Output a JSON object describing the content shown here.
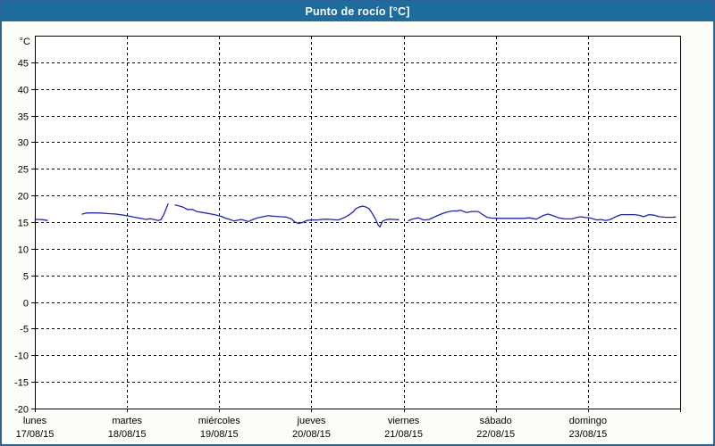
{
  "window": {
    "title": "Punto de rocío [°C]"
  },
  "colors": {
    "title_bar": "#1e6c9e",
    "title_text": "#ffffff",
    "outer_border": "#2c6295",
    "background": "#fcfdf9",
    "plot_background": "#ffffff",
    "plot_border": "#000000",
    "grid": "#000000",
    "axis_text": "#000000",
    "line": "#2121c8"
  },
  "chart_data": {
    "type": "line",
    "title": "Punto de rocío [°C]",
    "ylabel": "°C",
    "xlabel": "",
    "ylim": [
      -20,
      50
    ],
    "yticks": [
      -20,
      -15,
      -10,
      -5,
      0,
      5,
      10,
      15,
      20,
      25,
      30,
      35,
      40,
      45
    ],
    "xlim": [
      0,
      7
    ],
    "grid": "dashed",
    "legend_position": "none",
    "x_categories": [
      {
        "name": "lunes",
        "date": "17/08/15"
      },
      {
        "name": "martes",
        "date": "18/08/15"
      },
      {
        "name": "miércoles",
        "date": "19/08/15"
      },
      {
        "name": "jueves",
        "date": "20/08/15"
      },
      {
        "name": "viernes",
        "date": "21/08/15"
      },
      {
        "name": "sábado",
        "date": "22/08/15"
      },
      {
        "name": "domingo",
        "date": "23/08/15"
      }
    ],
    "series": [
      {
        "name": "Punto de rocío",
        "color": "#2121c8",
        "unit": "°C",
        "segments": [
          [
            [
              0.0,
              15.5
            ],
            [
              0.048,
              15.5
            ],
            [
              0.087,
              15.45
            ],
            [
              0.136,
              15.3
            ]
          ],
          [
            [
              0.514,
              16.5
            ],
            [
              0.562,
              16.7
            ],
            [
              0.63,
              16.75
            ],
            [
              0.708,
              16.7
            ],
            [
              0.785,
              16.6
            ],
            [
              0.882,
              16.5
            ],
            [
              0.96,
              16.3
            ],
            [
              1.028,
              16.1
            ],
            [
              1.096,
              15.85
            ],
            [
              1.154,
              15.7
            ],
            [
              1.202,
              15.5
            ],
            [
              1.251,
              15.65
            ],
            [
              1.29,
              15.5
            ],
            [
              1.338,
              15.3
            ],
            [
              1.367,
              15.45
            ],
            [
              1.396,
              16.3
            ],
            [
              1.445,
              18.4
            ]
          ],
          [
            [
              1.522,
              18.2
            ],
            [
              1.561,
              18.05
            ],
            [
              1.61,
              17.8
            ],
            [
              1.658,
              17.35
            ],
            [
              1.707,
              17.4
            ],
            [
              1.755,
              17.0
            ],
            [
              1.852,
              16.7
            ],
            [
              1.949,
              16.4
            ],
            [
              2.017,
              16.1
            ],
            [
              2.065,
              15.75
            ],
            [
              2.123,
              15.45
            ],
            [
              2.162,
              15.2
            ],
            [
              2.201,
              15.35
            ],
            [
              2.24,
              15.5
            ],
            [
              2.279,
              15.3
            ],
            [
              2.318,
              15.1
            ],
            [
              2.366,
              15.5
            ],
            [
              2.415,
              15.8
            ],
            [
              2.473,
              16.0
            ],
            [
              2.531,
              16.2
            ],
            [
              2.589,
              16.1
            ],
            [
              2.667,
              16.0
            ],
            [
              2.725,
              15.95
            ],
            [
              2.783,
              15.6
            ],
            [
              2.822,
              15.0
            ],
            [
              2.86,
              14.75
            ],
            [
              2.899,
              14.9
            ],
            [
              2.948,
              15.3
            ],
            [
              2.996,
              15.4
            ],
            [
              3.064,
              15.4
            ],
            [
              3.113,
              15.5
            ],
            [
              3.161,
              15.55
            ],
            [
              3.209,
              15.5
            ],
            [
              3.287,
              15.4
            ],
            [
              3.306,
              15.5
            ],
            [
              3.365,
              15.9
            ],
            [
              3.413,
              16.4
            ],
            [
              3.452,
              16.9
            ],
            [
              3.481,
              17.5
            ],
            [
              3.52,
              17.85
            ],
            [
              3.558,
              18.0
            ],
            [
              3.597,
              17.8
            ],
            [
              3.626,
              17.5
            ],
            [
              3.665,
              16.5
            ],
            [
              3.694,
              15.6
            ],
            [
              3.723,
              14.5
            ],
            [
              3.743,
              14.1
            ],
            [
              3.772,
              15.2
            ],
            [
              3.81,
              15.45
            ],
            [
              3.849,
              15.55
            ],
            [
              3.898,
              15.5
            ],
            [
              3.946,
              15.45
            ]
          ],
          [
            [
              4.053,
              15.25
            ],
            [
              4.101,
              15.6
            ],
            [
              4.16,
              15.8
            ],
            [
              4.218,
              15.4
            ],
            [
              4.276,
              15.5
            ],
            [
              4.353,
              16.1
            ],
            [
              4.421,
              16.6
            ],
            [
              4.47,
              16.9
            ],
            [
              4.528,
              17.1
            ],
            [
              4.586,
              17.1
            ],
            [
              4.615,
              17.25
            ],
            [
              4.683,
              16.8
            ],
            [
              4.741,
              17.0
            ],
            [
              4.809,
              17.0
            ],
            [
              4.858,
              16.4
            ],
            [
              4.906,
              15.9
            ],
            [
              4.955,
              15.75
            ],
            [
              5.052,
              15.7
            ],
            [
              5.149,
              15.7
            ],
            [
              5.246,
              15.7
            ],
            [
              5.304,
              15.7
            ],
            [
              5.362,
              15.8
            ],
            [
              5.44,
              15.55
            ],
            [
              5.517,
              16.25
            ],
            [
              5.566,
              16.5
            ],
            [
              5.614,
              16.25
            ],
            [
              5.682,
              15.8
            ],
            [
              5.75,
              15.6
            ],
            [
              5.827,
              15.6
            ],
            [
              5.886,
              15.9
            ],
            [
              5.924,
              16.0
            ],
            [
              5.973,
              15.85
            ],
            [
              6.021,
              15.8
            ],
            [
              6.07,
              15.55
            ],
            [
              6.099,
              15.4
            ],
            [
              6.138,
              15.5
            ],
            [
              6.196,
              15.3
            ],
            [
              6.244,
              15.5
            ],
            [
              6.312,
              16.1
            ],
            [
              6.361,
              16.4
            ],
            [
              6.438,
              16.4
            ],
            [
              6.506,
              16.4
            ],
            [
              6.564,
              16.25
            ],
            [
              6.603,
              16.0
            ],
            [
              6.661,
              16.4
            ],
            [
              6.719,
              16.3
            ],
            [
              6.777,
              16.0
            ],
            [
              6.845,
              15.9
            ],
            [
              6.913,
              15.9
            ],
            [
              6.95,
              15.95
            ]
          ]
        ]
      }
    ]
  }
}
